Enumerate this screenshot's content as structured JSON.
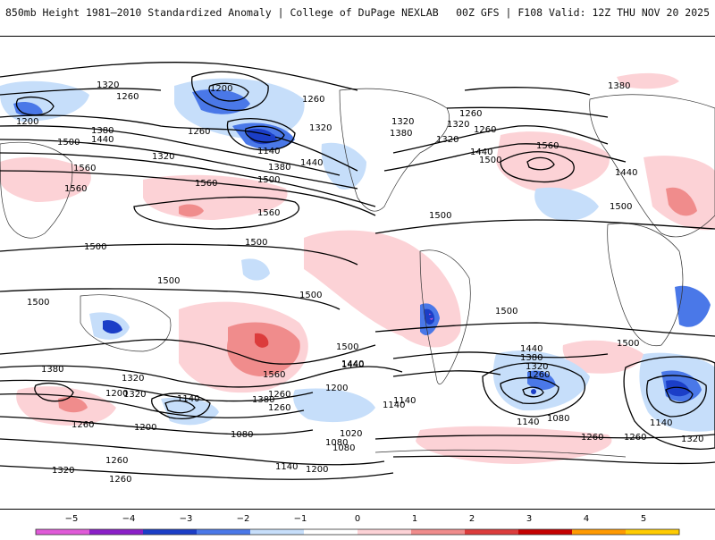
{
  "header": {
    "title_left": "850mb Height 1981–2010 Standardized Anomaly | College of DuPage NEXLAB",
    "title_right": "00Z GFS | F108 Valid: 12Z THU NOV 20 2025"
  },
  "colorbar": {
    "ticks": [
      "−5",
      "−4",
      "−3",
      "−2",
      "−1",
      "0",
      "1",
      "2",
      "3",
      "4",
      "5"
    ],
    "colors": [
      "#e05ad8",
      "#8a1fc8",
      "#1b3ec7",
      "#4a78e8",
      "#c6defa",
      "#ffffff",
      "#fcd2d6",
      "#f08c8c",
      "#dc3c3c",
      "#c40000",
      "#ff9a00",
      "#ffcc00"
    ]
  },
  "contour_labels": [
    "1320",
    "1260",
    "1200",
    "1260",
    "1200",
    "1260",
    "1320",
    "1260",
    "1380",
    "1440",
    "1500",
    "1560",
    "1320",
    "1140",
    "1380",
    "1440",
    "1500",
    "1560",
    "1560",
    "1500",
    "1500",
    "1560",
    "1320",
    "1260",
    "1320",
    "1380",
    "1440",
    "1500",
    "1560",
    "1380",
    "1440",
    "1500",
    "1500",
    "1500",
    "1500",
    "1500",
    "1440",
    "1380",
    "1320",
    "1260",
    "1200",
    "1140",
    "1080",
    "1020",
    "1080",
    "1140",
    "1200",
    "1260",
    "1320",
    "1380",
    "1440",
    "1500",
    "1560",
    "1500",
    "1440",
    "1380",
    "1320",
    "1260",
    "1140",
    "1080",
    "1140",
    "1260",
    "1260",
    "1320",
    "1320",
    "1260",
    "1200",
    "1140",
    "1080",
    "1260",
    "1320",
    "1200",
    "1140",
    "1260",
    "1500"
  ]
}
